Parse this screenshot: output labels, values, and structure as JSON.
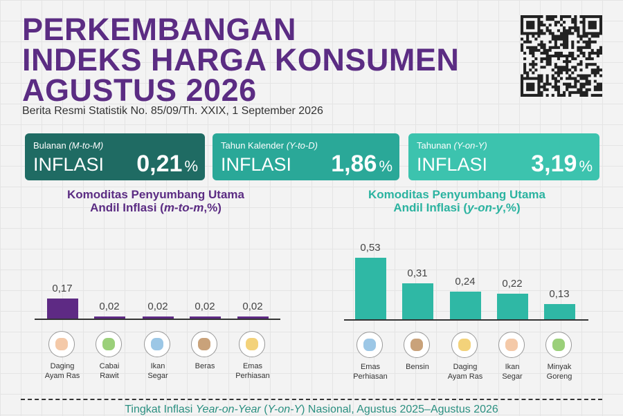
{
  "header": {
    "title": [
      "PERKEMBANGAN",
      "INDEKS HARGA KONSUMEN",
      "AGUSTUS 2026"
    ],
    "subtitle": "Berita Resmi Statistik No. 85/09/Th. XXIX, 1 September 2026"
  },
  "cards": [
    {
      "label": "Bulanan",
      "label_note": "(M-to-M)",
      "heading": "INFLASI",
      "value": "0,21",
      "unit": "%"
    },
    {
      "label": "Tahun Kalender",
      "label_note": "(Y-to-D)",
      "heading": "INFLASI",
      "value": "1,86",
      "unit": "%"
    },
    {
      "label": "Tahunan",
      "label_note": "(Y-on-Y)",
      "heading": "INFLASI",
      "value": "3,19",
      "unit": "%"
    }
  ],
  "chart_data": [
    {
      "type": "bar",
      "title": "Komoditas Penyumbang Utama",
      "subtitle": [
        "Andil Inflasi (",
        "m-to-m",
        ",%)"
      ],
      "categories": [
        [
          "Daging",
          "Ayam Ras"
        ],
        [
          "Cabai",
          "Rawit"
        ],
        [
          "Ikan",
          "Segar"
        ],
        [
          "Beras"
        ],
        [
          "Emas",
          "Perhiasan"
        ]
      ],
      "values": [
        0.17,
        0.02,
        0.02,
        0.02,
        0.02
      ],
      "value_labels": [
        "0,17",
        "0,02",
        "0,02",
        "0,02",
        "0,02"
      ],
      "color": "#5e2a84"
    },
    {
      "type": "bar",
      "title": "Komoditas Penyumbang Utama",
      "subtitle": [
        "Andil Inflasi (",
        "y-on-y",
        ",%)"
      ],
      "categories": [
        [
          "Emas",
          "Perhiasan"
        ],
        [
          "Bensin"
        ],
        [
          "Daging",
          "Ayam Ras"
        ],
        [
          "Ikan",
          "Segar"
        ],
        [
          "Minyak",
          "Goreng"
        ]
      ],
      "values": [
        0.53,
        0.31,
        0.24,
        0.22,
        0.13
      ],
      "value_labels": [
        "0,53",
        "0,31",
        "0,24",
        "0,22",
        "0,13"
      ],
      "color": "#2fb8a5"
    }
  ],
  "footer": {
    "text": [
      "Tingkat Inflasi ",
      "Year-on-Year",
      " (",
      "Y-on-Y",
      ") Nasional, Agustus 2025–Agustus 2026"
    ]
  }
}
